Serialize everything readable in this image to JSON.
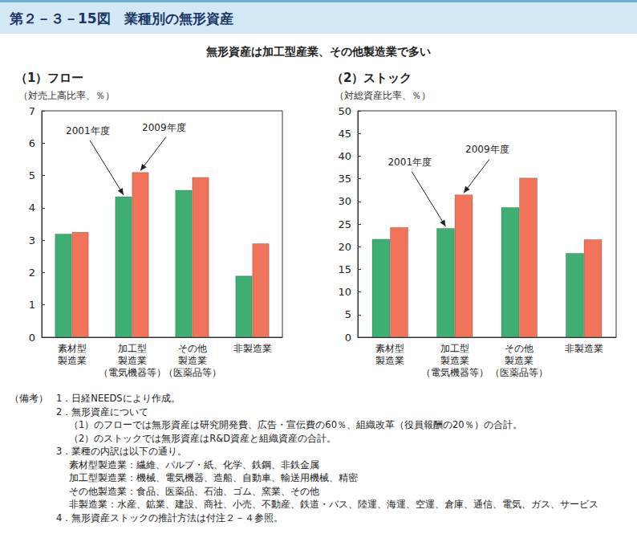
{
  "figure": {
    "title": "第２－３－15図　業種別の無形資産",
    "subtitle": "無形資産は加工型産業、その他製造業で多い"
  },
  "chart_data": [
    {
      "type": "bar",
      "title": "（1）フロー",
      "y_label": "（対売上高比率、％）",
      "categories": [
        "素材型\n製造業",
        "加工型\n製造業\n（電気機器等）",
        "その他\n製造業\n（医薬品等）",
        "非製造業"
      ],
      "series": [
        {
          "name": "2001年度",
          "color": "#3fae72",
          "values": [
            3.2,
            4.35,
            4.55,
            1.9
          ]
        },
        {
          "name": "2009年度",
          "color": "#f0735a",
          "values": [
            3.25,
            5.1,
            4.95,
            2.9
          ]
        }
      ],
      "ylim": [
        0,
        7
      ],
      "yticks": [
        0,
        1,
        2,
        3,
        4,
        5,
        6,
        7
      ],
      "grid": false,
      "annotations": [
        {
          "text": "2001年度",
          "category": "加工型\n製造業\n（電気機器等）"
        },
        {
          "text": "2009年度",
          "category": "加工型\n製造業\n（電気機器等）"
        }
      ]
    },
    {
      "type": "bar",
      "title": "（2）ストック",
      "y_label": "（対総資産比率、％）",
      "categories": [
        "素材型\n製造業",
        "加工型\n製造業\n（電気機器等）",
        "その他\n製造業\n（医薬品等）",
        "非製造業"
      ],
      "series": [
        {
          "name": "2001年度",
          "color": "#3fae72",
          "values": [
            21.7,
            24.1,
            28.7,
            18.6
          ]
        },
        {
          "name": "2009年度",
          "color": "#f0735a",
          "values": [
            24.3,
            31.5,
            35.2,
            21.6
          ]
        }
      ],
      "ylim": [
        0,
        50
      ],
      "yticks": [
        0,
        5,
        10,
        15,
        20,
        25,
        30,
        35,
        40,
        45,
        50
      ],
      "grid": false,
      "annotations": [
        {
          "text": "2001年度",
          "category": "加工型\n製造業\n（電気機器等）"
        },
        {
          "text": "2009年度",
          "category": "加工型\n製造業\n（電気機器等）"
        }
      ]
    }
  ],
  "notes": {
    "label": "（備考）",
    "items": [
      {
        "text": "1．日経NEEDSにより作成。",
        "sub": []
      },
      {
        "text": "2．無形資産について",
        "sub": [
          "（1）のフローでは無形資産は研究開発費、広告・宣伝費の60％、組織改革（役員報酬の20％）の合計。",
          "（2）のストックでは無形資産はR&D資産と組織資産の合計。"
        ]
      },
      {
        "text": "3．業種の内訳は以下の通り。",
        "sub": [
          "素材型製造業：繊維、パルプ・紙、化学、鉄鋼、非鉄金属",
          "加工型製造業：機械、電気機器、造船、自動車、輸送用機械、精密",
          "その他製造業：食品、医薬品、石油、ゴム、窯業、その他",
          "非製造業：水産、鉱業、建設、商社、小売、不動産、鉄道・バス、陸運、海運、空運、倉庫、通信、電気、ガス、サービス"
        ]
      },
      {
        "text": "4．無形資産ストックの推計方法は付注２－４参照。",
        "sub": []
      }
    ]
  }
}
